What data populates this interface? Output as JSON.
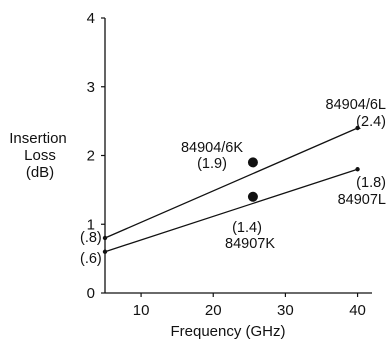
{
  "chart_data": {
    "type": "line",
    "title": "",
    "xlabel": "Frequency (GHz)",
    "ylabel": [
      "Insertion",
      "Loss",
      "(dB)"
    ],
    "xlim": [
      5,
      42
    ],
    "ylim": [
      0,
      4
    ],
    "xticks": [
      10,
      20,
      30,
      40
    ],
    "yticks": [
      0,
      1,
      2,
      3,
      4
    ],
    "grid": false,
    "legend": "none",
    "series": [
      {
        "points": [
          [
            5,
            0.8
          ],
          [
            25.5,
            1.9
          ],
          [
            40,
            2.4
          ]
        ],
        "labels": {
          "start": "(.8)",
          "mid_name": "84904/6K",
          "mid_value": "(1.9)",
          "end_name": "84904/6L",
          "end_value": "(2.4)"
        }
      },
      {
        "points": [
          [
            5,
            0.6
          ],
          [
            25.5,
            1.4
          ],
          [
            40,
            1.8
          ]
        ],
        "labels": {
          "start": "(.6)",
          "mid_value": "(1.4)",
          "mid_name": "84907K",
          "end_value": "(1.8)",
          "end_name": "84907L"
        }
      }
    ]
  }
}
